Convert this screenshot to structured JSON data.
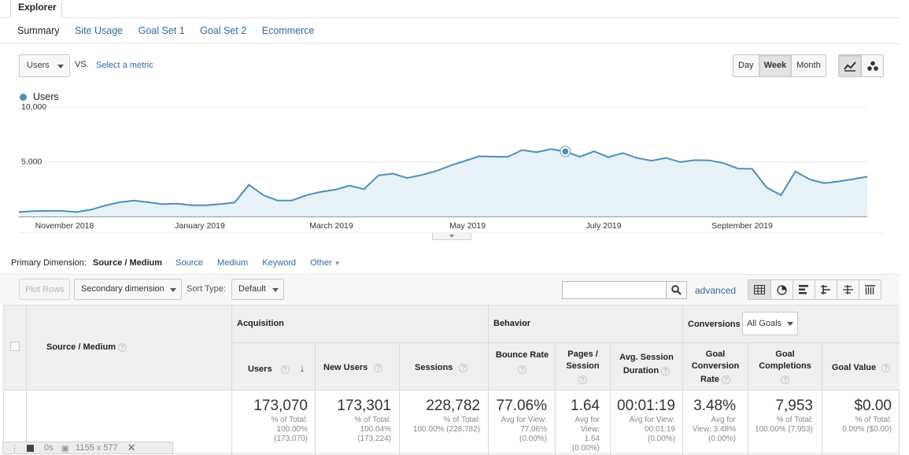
{
  "explorer_tab": "Explorer",
  "subtabs": [
    "Summary",
    "Site Usage",
    "Goal Set 1",
    "Goal Set 2",
    "Ecommerce"
  ],
  "metric_select": "Users",
  "vs_label": "VS.",
  "select_metric": "Select a metric",
  "granularity": [
    "Day",
    "Week",
    "Month"
  ],
  "granularity_active": "Week",
  "legend_label": "Users",
  "accent_color": "#4a90b8",
  "chart_data": {
    "type": "area",
    "y_ticks": [
      "10,000",
      "5,000"
    ],
    "ylim": [
      0,
      10000
    ],
    "x_tick_labels": [
      "November 2018",
      "January 2019",
      "March 2019",
      "May 2019",
      "July 2019",
      "September 2019"
    ],
    "series": [
      {
        "name": "Users",
        "highlight_index": 38,
        "values": [
          400,
          500,
          510,
          510,
          400,
          620,
          1000,
          1300,
          1450,
          1300,
          1120,
          1180,
          1030,
          1030,
          1130,
          1270,
          2900,
          1950,
          1450,
          1470,
          1950,
          2250,
          2450,
          2820,
          2500,
          3750,
          3920,
          3520,
          3790,
          4150,
          4650,
          5070,
          5500,
          5470,
          5450,
          6070,
          5870,
          6160,
          5940,
          5450,
          5960,
          5420,
          5800,
          5340,
          5100,
          5350,
          4970,
          5150,
          5130,
          4880,
          4380,
          4350,
          2650,
          1950,
          4120,
          3380,
          3050,
          3200,
          3410,
          3650
        ]
      }
    ]
  },
  "primary_dimension": {
    "label": "Primary Dimension:",
    "current": "Source / Medium",
    "options": [
      "Source",
      "Medium",
      "Keyword"
    ],
    "other": "Other"
  },
  "toolbar": {
    "plot_rows": "Plot Rows",
    "secondary_dimension": "Secondary dimension",
    "sort_type_label": "Sort Type:",
    "sort_type_value": "Default",
    "search_value": "",
    "advanced": "advanced"
  },
  "table": {
    "dimension_header": "Source / Medium",
    "groups": {
      "acquisition": "Acquisition",
      "behavior": "Behavior",
      "conversions": "Conversions",
      "goals_select": "All Goals"
    },
    "columns": {
      "users": "Users",
      "new_users": "New Users",
      "sessions": "Sessions",
      "bounce_rate": "Bounce Rate",
      "pages_session_1": "Pages /",
      "pages_session_2": "Session",
      "avg_session_1": "Avg. Session",
      "avg_session_2": "Duration",
      "goal_conv_1": "Goal",
      "goal_conv_2": "Conversion",
      "goal_conv_3": "Rate",
      "goal_comp_1": "Goal",
      "goal_comp_2": "Completions",
      "goal_value": "Goal Value"
    },
    "totals": {
      "users": "173,070",
      "users_sub1": "% of Total:",
      "users_sub2": "100.00%",
      "users_sub3": "(173,070)",
      "new_users": "173,301",
      "new_users_sub1": "% of Total:",
      "new_users_sub2": "100.04%",
      "new_users_sub3": "(173,224)",
      "sessions": "228,782",
      "sessions_sub1": "% of Total:",
      "sessions_sub2": "100.00% (228,782)",
      "bounce_rate": "77.06%",
      "bounce_rate_sub1": "Avg for View:",
      "bounce_rate_sub2": "77.06%",
      "bounce_rate_sub3": "(0.00%)",
      "pages": "1.64",
      "pages_sub1": "Avg for",
      "pages_sub2": "View:",
      "pages_sub3": "1.64",
      "pages_sub4": "(0.00%)",
      "avg_dur": "00:01:19",
      "avg_dur_sub1": "Avg for View:",
      "avg_dur_sub2": "00:01:19",
      "avg_dur_sub3": "(0.00%)",
      "conv_rate": "3.48%",
      "conv_rate_sub1": "Avg for",
      "conv_rate_sub2": "View: 3.48%",
      "conv_rate_sub3": "(0.00%)",
      "completions": "7,953",
      "completions_sub1": "% of Total:",
      "completions_sub2": "100.00% (7,953)",
      "goal_value": "$0.00",
      "goal_value_sub1": "% of Total:",
      "goal_value_sub2": "0.00% ($0.00)"
    }
  },
  "overlay": {
    "time": "0s",
    "dims": "1155 x 577"
  }
}
